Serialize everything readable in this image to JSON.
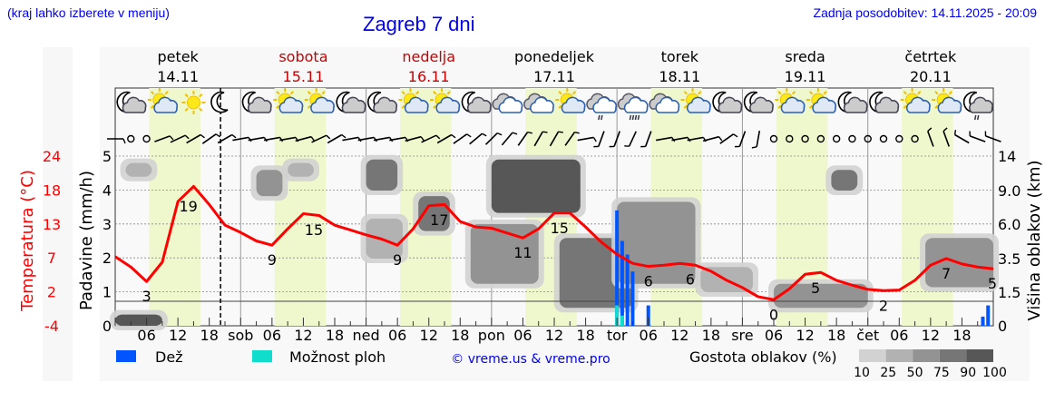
{
  "header": {
    "hint": "(kraj lahko izberete v meniju)",
    "title": "Zagreb 7 dni",
    "updated": "Zadnja posodobitev: 14.11.2025 - 20:09"
  },
  "days": [
    {
      "name": "petek",
      "date": "14.11",
      "weekend": false,
      "abbr": ""
    },
    {
      "name": "sobota",
      "date": "15.11",
      "weekend": true,
      "abbr": "sob"
    },
    {
      "name": "nedelja",
      "date": "16.11",
      "weekend": true,
      "abbr": "ned"
    },
    {
      "name": "ponedeljek",
      "date": "17.11",
      "weekend": false,
      "abbr": "pon"
    },
    {
      "name": "torek",
      "date": "18.11",
      "weekend": false,
      "abbr": "tor"
    },
    {
      "name": "sreda",
      "date": "19.11",
      "weekend": false,
      "abbr": "sre"
    },
    {
      "name": "četrtek",
      "date": "20.11",
      "weekend": false,
      "abbr": "čet"
    }
  ],
  "hour_ticks": [
    "06",
    "12",
    "18"
  ],
  "colors": {
    "temperature": "#ff0000",
    "rain": "#0055ff",
    "showers": "#11ddcc",
    "daylight": "#eff7cc",
    "weekend": "#cc0000",
    "link": "#0000ee"
  },
  "chart_data": {
    "type": "line",
    "start": "14.11.2025 00:00",
    "step_hours": 3,
    "now": "14.11 20:09",
    "daylight_hours": [
      6.5,
      16.3
    ],
    "axes": {
      "temperature": {
        "label": "Temperatura (°C)",
        "ticks": [
          "24",
          "18",
          "13",
          "7",
          "2",
          "-4"
        ],
        "range": [
          -4,
          24
        ]
      },
      "precipitation": {
        "label": "Padavine (mm/h)",
        "ticks": [
          "5",
          "4",
          "3",
          "2",
          "1",
          "0"
        ],
        "range": [
          0,
          5
        ]
      },
      "cloud_height": {
        "label": "Višina oblakov (km)",
        "ticks": [
          "14",
          "9.0",
          "6.0",
          "3.5",
          "1.5",
          "0"
        ],
        "tick_values": [
          14,
          9,
          6,
          3.5,
          1.5,
          0
        ]
      }
    },
    "temperature": [
      7.4,
      5.7,
      3.3,
      6.5,
      16.5,
      19.0,
      16.0,
      12.6,
      11.4,
      10.0,
      9.3,
      12.0,
      14.5,
      14.2,
      12.6,
      11.8,
      11.0,
      10.3,
      9.3,
      12.0,
      15.8,
      16.0,
      13.2,
      12.3,
      12.1,
      11.3,
      10.5,
      12.0,
      14.6,
      14.6,
      12.3,
      9.8,
      7.8,
      6.3,
      5.8,
      6.0,
      6.3,
      6.0,
      5.0,
      3.5,
      2.3,
      0.8,
      0.3,
      2.1,
      4.5,
      4.8,
      3.5,
      2.7,
      2.0,
      1.8,
      1.9,
      3.5,
      6.0,
      7.1,
      6.2,
      5.7,
      5.4
    ],
    "temperature_labels": [
      {
        "time": "14.11 06:00",
        "text": "3"
      },
      {
        "time": "14.11 14:00",
        "text": "19"
      },
      {
        "time": "15.11 06:00",
        "text": "9"
      },
      {
        "time": "15.11 14:00",
        "text": "15"
      },
      {
        "time": "16.11 06:00",
        "text": "9"
      },
      {
        "time": "16.11 14:00",
        "text": "17"
      },
      {
        "time": "17.11 06:00",
        "text": "11"
      },
      {
        "time": "17.11 13:00",
        "text": "15"
      },
      {
        "time": "18.11 06:00",
        "text": "6"
      },
      {
        "time": "18.11 14:00",
        "text": "6"
      },
      {
        "time": "19.11 06:00",
        "text": "0"
      },
      {
        "time": "19.11 14:00",
        "text": "5"
      },
      {
        "time": "20.11 03:00",
        "text": "2"
      },
      {
        "time": "20.11 15:00",
        "text": "7"
      },
      {
        "time": "20.11 24:00",
        "text": "5"
      }
    ],
    "rain": [
      {
        "time": "18.11 00:00",
        "value": 3.4,
        "showers": 0.6
      },
      {
        "time": "18.11 01:00",
        "value": 2.5,
        "showers": 0.3
      },
      {
        "time": "18.11 02:00",
        "value": 2.1,
        "showers": 0
      },
      {
        "time": "18.11 03:00",
        "value": 1.6,
        "showers": 0
      },
      {
        "time": "18.11 06:00",
        "value": 0.6,
        "showers": 0
      },
      {
        "time": "20.11 22:00",
        "value": 0.27,
        "showers": 0
      },
      {
        "time": "20.11 23:00",
        "value": 0.6,
        "showers": 0
      }
    ],
    "clouds": [
      {
        "from": "14.11 00:00",
        "to": "14.11 09:00",
        "low_km": 0,
        "high_km": 0.5,
        "density": 90
      },
      {
        "from": "14.11 02:00",
        "to": "14.11 07:00",
        "low_km": 11,
        "high_km": 13,
        "density": 25
      },
      {
        "from": "15.11 03:00",
        "to": "15.11 08:00",
        "low_km": 8.5,
        "high_km": 12,
        "density": 50
      },
      {
        "from": "15.11 09:00",
        "to": "15.11 14:00",
        "low_km": 11,
        "high_km": 13,
        "density": 25
      },
      {
        "from": "16.11 00:00",
        "to": "16.11 07:00",
        "low_km": 3.5,
        "high_km": 6.5,
        "density": 25
      },
      {
        "from": "16.11 00:00",
        "to": "16.11 06:00",
        "low_km": 9,
        "high_km": 13.5,
        "density": 75
      },
      {
        "from": "16.11 10:00",
        "to": "16.11 16:00",
        "low_km": 5.5,
        "high_km": 8.5,
        "density": 75
      },
      {
        "from": "17.11 00:00",
        "to": "17.11 17:00",
        "low_km": 7,
        "high_km": 13.5,
        "density": 90
      },
      {
        "from": "16.11 20:00",
        "to": "17.11 09:00",
        "low_km": 2,
        "high_km": 6,
        "density": 50
      },
      {
        "from": "17.11 13:00",
        "to": "18.11 03:00",
        "low_km": 0.8,
        "high_km": 5,
        "density": 75
      },
      {
        "from": "18.11 00:00",
        "to": "18.11 15:00",
        "low_km": 2,
        "high_km": 8,
        "density": 50
      },
      {
        "from": "18.11 16:00",
        "to": "19.11 02:00",
        "low_km": 1.5,
        "high_km": 3,
        "density": 25
      },
      {
        "from": "19.11 06:00",
        "to": "20.11 00:00",
        "low_km": 0.8,
        "high_km": 2,
        "density": 50
      },
      {
        "from": "19.11 17:00",
        "to": "19.11 22:00",
        "low_km": 9,
        "high_km": 12,
        "density": 75
      },
      {
        "from": "20.11 11:00",
        "to": "20.11 24:00",
        "low_km": 1.8,
        "high_km": 5,
        "density": 50
      }
    ],
    "weather_icons": [
      "moon-cloud",
      "sun-cloud",
      "sun",
      "moon",
      "moon-cloud",
      "sun-cloud",
      "sun-cloud",
      "moon-cloud",
      "moon-cloud",
      "sun-cloud",
      "sun-cloud",
      "moon-cloud",
      "cloudy",
      "cloudy",
      "sun-cloud",
      "rain-light",
      "rain-heavy",
      "cloudy",
      "sun-cloud",
      "moon-cloud",
      "moon-cloud",
      "sun-cloud",
      "sun-cloud",
      "moon-cloud",
      "moon-cloud",
      "sun-cloud",
      "sun-cloud",
      "moon-cloud-rain"
    ],
    "wind": [
      90,
      "calm",
      "calm",
      70,
      65,
      60,
      55,
      60,
      80,
      80,
      80,
      80,
      75,
      65,
      60,
      80,
      80,
      80,
      80,
      75,
      65,
      60,
      55,
      50,
      45,
      40,
      35,
      30,
      30,
      35,
      80,
      200,
      200,
      205,
      200,
      80,
      80,
      80,
      75,
      55,
      200,
      190,
      "calm",
      "calm",
      "calm",
      "calm",
      "calm",
      "calm",
      "calm",
      "calm",
      "calm",
      "calm",
      340,
      340,
      300,
      290,
      290
    ],
    "legend": {
      "rain": "Dež",
      "showers": "Možnost ploh",
      "credit": "© vreme.us & vreme.pro",
      "cloud_density": "Gostota oblakov (%)",
      "density_levels": [
        "10",
        "25",
        "50",
        "75",
        "90",
        "100"
      ],
      "density_colors": [
        "#d2d2d2",
        "#b2b2b2",
        "#939393",
        "#767676",
        "#575757"
      ]
    }
  }
}
